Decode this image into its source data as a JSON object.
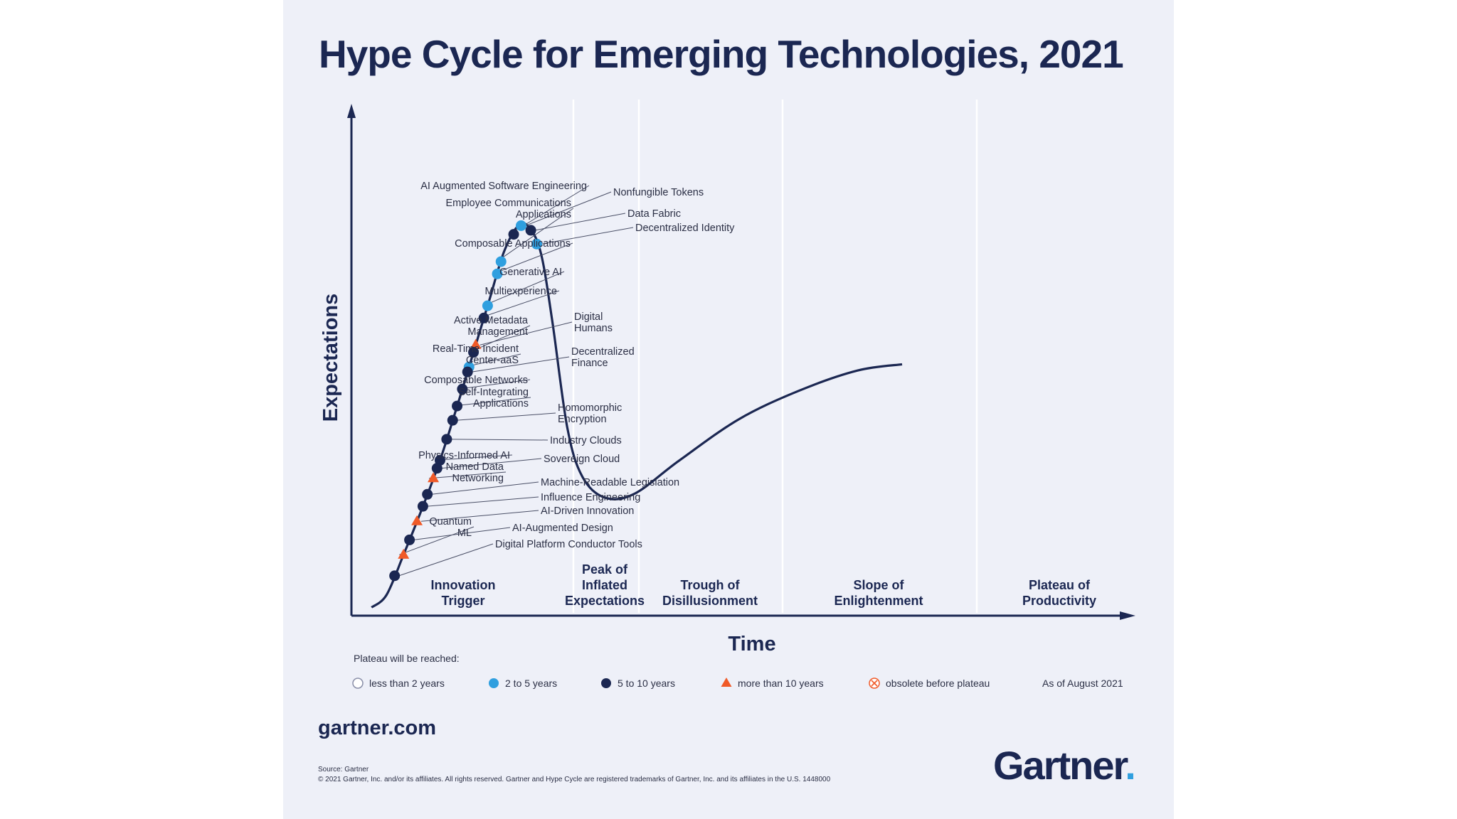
{
  "title": "Hype Cycle for Emerging Technologies, 2021",
  "chart_data": {
    "type": "scatter",
    "title": "Hype Cycle for Emerging Technologies, 2021",
    "xlabel": "Time",
    "ylabel": "Expectations",
    "phases": [
      {
        "name": "Innovation Trigger",
        "lines": [
          "Innovation",
          "Trigger"
        ]
      },
      {
        "name": "Peak of Inflated Expectations",
        "lines": [
          "Peak of",
          "Inflated",
          "Expectations"
        ]
      },
      {
        "name": "Trough of Disillusionment",
        "lines": [
          "Trough of",
          "Disillusionment"
        ]
      },
      {
        "name": "Slope of Enlightenment",
        "lines": [
          "Slope of",
          "Enlightenment"
        ]
      },
      {
        "name": "Plateau of Productivity",
        "lines": [
          "Plateau of",
          "Productivity"
        ]
      }
    ],
    "points": [
      {
        "name": "AI Augmented Software Engineering",
        "lines": [
          "AI Augmented Software Engineering"
        ],
        "category": "5 to 10 years",
        "t": 0.218,
        "side": "left"
      },
      {
        "name": "Nonfungible Tokens",
        "lines": [
          "Nonfungible Tokens"
        ],
        "category": "2 to 5 years",
        "t": 0.228,
        "side": "right"
      },
      {
        "name": "Data Fabric",
        "lines": [
          "Data Fabric"
        ],
        "category": "5 to 10 years",
        "t": 0.241,
        "side": "right"
      },
      {
        "name": "Decentralized Identity",
        "lines": [
          "Decentralized Identity"
        ],
        "category": "2 to 5 years",
        "t": 0.249,
        "side": "right"
      },
      {
        "name": "Employee Communications Applications",
        "lines": [
          "Employee Communications",
          "Applications"
        ],
        "category": "2 to 5 years",
        "t": 0.201,
        "side": "left"
      },
      {
        "name": "Composable Applications",
        "lines": [
          "Composable Applications"
        ],
        "category": "2 to 5 years",
        "t": 0.196,
        "side": "left"
      },
      {
        "name": "Generative AI",
        "lines": [
          "Generative AI"
        ],
        "category": "2 to 5 years",
        "t": 0.183,
        "side": "left"
      },
      {
        "name": "Multiexperience",
        "lines": [
          "Multiexperience"
        ],
        "category": "5 to 10 years",
        "t": 0.178,
        "side": "left"
      },
      {
        "name": "Digital Humans",
        "lines": [
          "Digital",
          "Humans"
        ],
        "category": "more than 10 years",
        "t": 0.167,
        "side": "right"
      },
      {
        "name": "Active Metadata Management",
        "lines": [
          "Active Metadata",
          "Management"
        ],
        "category": "5 to 10 years",
        "t": 0.164,
        "side": "left"
      },
      {
        "name": "Real-Time Incident Center-aaS",
        "lines": [
          "Real-Time Incident",
          "Center-aaS"
        ],
        "category": "2 to 5 years",
        "t": 0.158,
        "side": "left"
      },
      {
        "name": "Decentralized Finance",
        "lines": [
          "Decentralized",
          "Finance"
        ],
        "category": "5 to 10 years",
        "t": 0.156,
        "side": "right"
      },
      {
        "name": "Composable Networks",
        "lines": [
          "Composable Networks"
        ],
        "category": "5 to 10 years",
        "t": 0.149,
        "side": "left"
      },
      {
        "name": "Self-Integrating Applications",
        "lines": [
          "Self-Integrating",
          "Applications"
        ],
        "category": "5 to 10 years",
        "t": 0.142,
        "side": "left"
      },
      {
        "name": "Homomorphic Encryption",
        "lines": [
          "Homomorphic",
          "Encryption"
        ],
        "category": "5 to 10 years",
        "t": 0.136,
        "side": "right"
      },
      {
        "name": "Industry Clouds",
        "lines": [
          "Industry Clouds"
        ],
        "category": "5 to 10 years",
        "t": 0.128,
        "side": "right"
      },
      {
        "name": "Physics-Informed AI",
        "lines": [
          "Physics-Informed AI"
        ],
        "category": "5 to 10 years",
        "t": 0.119,
        "side": "left"
      },
      {
        "name": "Sovereign Cloud",
        "lines": [
          "Sovereign Cloud"
        ],
        "category": "5 to 10 years",
        "t": 0.115,
        "side": "right"
      },
      {
        "name": "Named Data Networking",
        "lines": [
          "Named Data",
          "Networking"
        ],
        "category": "more than 10 years",
        "t": 0.11,
        "side": "left"
      },
      {
        "name": "Machine-Readable Legislation",
        "lines": [
          "Machine-Readable Legislation"
        ],
        "category": "5 to 10 years",
        "t": 0.102,
        "side": "right"
      },
      {
        "name": "Influence Engineering",
        "lines": [
          "Influence Engineering"
        ],
        "category": "5 to 10 years",
        "t": 0.096,
        "side": "right"
      },
      {
        "name": "AI-Driven Innovation",
        "lines": [
          "AI-Driven Innovation"
        ],
        "category": "more than 10 years",
        "t": 0.088,
        "side": "right"
      },
      {
        "name": "AI-Augmented Design",
        "lines": [
          "AI-Augmented Design"
        ],
        "category": "5 to 10 years",
        "t": 0.078,
        "side": "right"
      },
      {
        "name": "Quantum ML",
        "lines": [
          "Quantum",
          "ML"
        ],
        "category": "more than 10 years",
        "t": 0.07,
        "side": "left"
      },
      {
        "name": "Digital Platform Conductor Tools",
        "lines": [
          "Digital Platform Conductor Tools"
        ],
        "category": "5 to 10 years",
        "t": 0.058,
        "side": "right"
      }
    ],
    "legend": {
      "title": "Plateau will be reached:",
      "items": [
        {
          "label": "less than 2 years",
          "marker": "hollow-circle",
          "color": "#ffffff"
        },
        {
          "label": "2 to 5 years",
          "marker": "circle",
          "color": "#2f9fdf"
        },
        {
          "label": "5 to 10 years",
          "marker": "circle",
          "color": "#1b2752"
        },
        {
          "label": "more than 10 years",
          "marker": "triangle",
          "color": "#f05a28"
        },
        {
          "label": "obsolete before plateau",
          "marker": "x-circle",
          "color": "#f05a28"
        }
      ],
      "as_of": "As of August 2021"
    }
  },
  "footer": {
    "site": "gartner.com",
    "source": "Source: Gartner",
    "copyright": "© 2021 Gartner, Inc. and/or its affiliates. All rights reserved. Gartner and Hype Cycle are registered trademarks of Gartner, Inc. and its affiliates in the U.S. 1448000",
    "brand": "Gartner",
    "brand_mark": "."
  },
  "colors": {
    "navy": "#1b2752",
    "blue": "#2f9fdf",
    "orange": "#f05a28",
    "text": "#2b2f45"
  }
}
